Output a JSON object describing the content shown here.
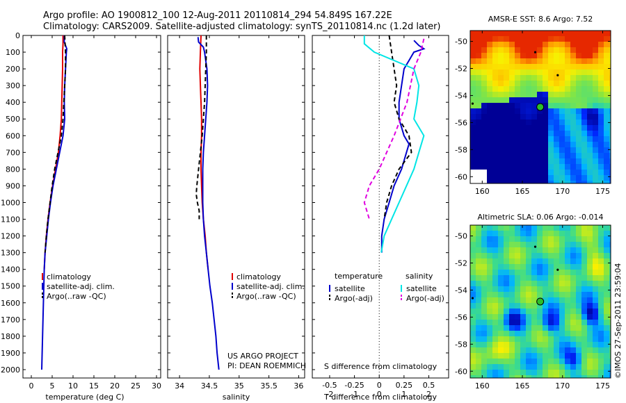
{
  "header": {
    "line1": "Argo profile: AO 1900812_100 12-Aug-2011 20110814_294 54.849S 167.22E",
    "line2": "Climatology: CARS2009. Satellite-adjusted climatology: synTS_20110814.nc (1.2d later)"
  },
  "colors": {
    "red": "#e00000",
    "blue": "#0000cc",
    "black": "#000000",
    "cyan": "#00e5e5",
    "magenta": "#e000e0"
  },
  "chart_data": [
    {
      "type": "line",
      "id": "temperature",
      "xlabel": "temperature (deg C)",
      "ylabel": "",
      "xlim": [
        -2,
        31
      ],
      "ylim": [
        2050,
        0
      ],
      "xticks": [
        0,
        5,
        10,
        15,
        20,
        25,
        30
      ],
      "yticks": [
        0,
        100,
        200,
        300,
        400,
        500,
        600,
        700,
        800,
        900,
        1000,
        1100,
        1200,
        1300,
        1400,
        1500,
        1600,
        1700,
        1800,
        1900,
        2000
      ],
      "legend": {
        "placement": "lower-left",
        "entries": [
          "climatology",
          "satellite-adj. clim.",
          "Argo(..raw -QC)"
        ]
      },
      "series": [
        {
          "name": "climatology",
          "color": "red",
          "dash": false,
          "points": [
            [
              7.6,
              0
            ],
            [
              7.6,
              50
            ],
            [
              7.5,
              100
            ],
            [
              7.5,
              200
            ],
            [
              7.4,
              300
            ],
            [
              7.3,
              400
            ],
            [
              7.2,
              500
            ],
            [
              6.9,
              600
            ],
            [
              6.5,
              700
            ],
            [
              5.8,
              800
            ],
            [
              5.1,
              900
            ],
            [
              4.5,
              1000
            ],
            [
              4.0,
              1100
            ],
            [
              3.6,
              1200
            ],
            [
              3.3,
              1300
            ],
            [
              3.1,
              1400
            ]
          ]
        },
        {
          "name": "satellite-adj. clim.",
          "color": "blue",
          "dash": false,
          "points": [
            [
              7.9,
              0
            ],
            [
              7.9,
              40
            ],
            [
              8.5,
              80
            ],
            [
              8.4,
              100
            ],
            [
              8.2,
              200
            ],
            [
              8.0,
              300
            ],
            [
              7.9,
              400
            ],
            [
              8.0,
              500
            ],
            [
              7.6,
              600
            ],
            [
              6.8,
              700
            ],
            [
              6.0,
              800
            ],
            [
              5.2,
              900
            ],
            [
              4.6,
              1000
            ],
            [
              4.1,
              1100
            ],
            [
              3.7,
              1200
            ],
            [
              3.3,
              1300
            ],
            [
              3.1,
              1400
            ],
            [
              3.0,
              1500
            ],
            [
              2.9,
              1600
            ],
            [
              2.8,
              1700
            ],
            [
              2.7,
              1800
            ],
            [
              2.6,
              1900
            ],
            [
              2.5,
              2000
            ]
          ]
        },
        {
          "name": "Argo(..raw -QC)",
          "color": "black",
          "dash": true,
          "points": [
            [
              8.0,
              0
            ],
            [
              8.1,
              50
            ],
            [
              8.2,
              100
            ],
            [
              8.2,
              200
            ],
            [
              8.0,
              300
            ],
            [
              7.8,
              400
            ],
            [
              7.6,
              500
            ],
            [
              7.2,
              600
            ],
            [
              6.4,
              700
            ],
            [
              5.6,
              800
            ],
            [
              5.0,
              900
            ],
            [
              4.5,
              1000
            ],
            [
              4.0,
              1100
            ],
            [
              3.6,
              1200
            ],
            [
              3.3,
              1300
            ]
          ]
        }
      ]
    },
    {
      "type": "line",
      "id": "salinity",
      "xlabel": "salinity",
      "ylabel": "",
      "xlim": [
        33.8,
        36.1
      ],
      "ylim": [
        2050,
        0
      ],
      "xticks": [
        34,
        34.5,
        35,
        35.5,
        36
      ],
      "legend": {
        "placement": "lower-left",
        "entries": [
          "climatology",
          "satellite-adj. clim.",
          "Argo(..raw -QC)"
        ]
      },
      "annotations": [
        "US ARGO PROJECT",
        "PI: DEAN ROEMMICH"
      ],
      "series": [
        {
          "name": "climatology",
          "color": "red",
          "dash": false,
          "points": [
            [
              34.36,
              0
            ],
            [
              34.35,
              100
            ],
            [
              34.34,
              200
            ],
            [
              34.35,
              300
            ],
            [
              34.36,
              400
            ],
            [
              34.37,
              500
            ],
            [
              34.37,
              600
            ],
            [
              34.36,
              700
            ],
            [
              34.36,
              800
            ],
            [
              34.37,
              900
            ],
            [
              34.38,
              1000
            ],
            [
              34.4,
              1100
            ],
            [
              34.43,
              1200
            ],
            [
              34.45,
              1300
            ],
            [
              34.48,
              1400
            ]
          ]
        },
        {
          "name": "satellite-adj. clim.",
          "color": "blue",
          "dash": false,
          "points": [
            [
              34.31,
              10
            ],
            [
              34.32,
              40
            ],
            [
              34.4,
              70
            ],
            [
              34.42,
              100
            ],
            [
              34.46,
              200
            ],
            [
              34.47,
              300
            ],
            [
              34.46,
              400
            ],
            [
              34.44,
              500
            ],
            [
              34.42,
              600
            ],
            [
              34.4,
              700
            ],
            [
              34.39,
              800
            ],
            [
              34.39,
              900
            ],
            [
              34.39,
              1000
            ],
            [
              34.4,
              1100
            ],
            [
              34.42,
              1200
            ],
            [
              34.45,
              1300
            ],
            [
              34.48,
              1400
            ],
            [
              34.51,
              1500
            ],
            [
              34.55,
              1600
            ],
            [
              34.58,
              1700
            ],
            [
              34.61,
              1800
            ],
            [
              34.63,
              1900
            ],
            [
              34.66,
              2000
            ]
          ]
        },
        {
          "name": "Argo(..raw -QC)",
          "color": "black",
          "dash": true,
          "points": [
            [
              34.45,
              0
            ],
            [
              34.45,
              100
            ],
            [
              34.44,
              200
            ],
            [
              34.43,
              300
            ],
            [
              34.42,
              400
            ],
            [
              34.4,
              500
            ],
            [
              34.38,
              600
            ],
            [
              34.35,
              700
            ],
            [
              34.32,
              800
            ],
            [
              34.29,
              900
            ],
            [
              34.28,
              950
            ],
            [
              34.3,
              1000
            ],
            [
              34.33,
              1050
            ],
            [
              34.33,
              1100
            ]
          ]
        }
      ]
    },
    {
      "type": "line",
      "id": "difference",
      "xlabel": "T difference from climatology",
      "xlabel_top": "S difference from climatology",
      "xlim": [
        -2.7,
        2.8
      ],
      "ylim": [
        2050,
        0
      ],
      "xticks": [
        -2,
        -1,
        0,
        1,
        2
      ],
      "xticks_top": [
        -0.5,
        -0.25,
        0,
        0.25,
        0.5
      ],
      "legend": {
        "placement": "lower-center",
        "header_left": "temperature",
        "header_right": "salinity",
        "entries": [
          "satellite",
          "Argo(-adj)",
          "satellite",
          "Argo(-adj)"
        ]
      },
      "series": [
        {
          "name": "temperature satellite",
          "color": "blue",
          "dash": false,
          "points": [
            [
              1.4,
              30
            ],
            [
              1.6,
              60
            ],
            [
              1.8,
              80
            ],
            [
              1.4,
              100
            ],
            [
              1.2,
              150
            ],
            [
              1.0,
              200
            ],
            [
              0.9,
              300
            ],
            [
              0.8,
              400
            ],
            [
              0.8,
              500
            ],
            [
              1.0,
              600
            ],
            [
              1.2,
              650
            ],
            [
              1.1,
              700
            ],
            [
              0.9,
              800
            ],
            [
              0.6,
              900
            ],
            [
              0.4,
              1000
            ],
            [
              0.2,
              1100
            ],
            [
              0.1,
              1200
            ],
            [
              0.1,
              1300
            ]
          ]
        },
        {
          "name": "temperature Argo(-adj)",
          "color": "black",
          "dash": true,
          "points": [
            [
              0.4,
              0
            ],
            [
              0.5,
              100
            ],
            [
              0.6,
              200
            ],
            [
              0.7,
              300
            ],
            [
              0.6,
              400
            ],
            [
              0.8,
              500
            ],
            [
              1.2,
              600
            ],
            [
              1.3,
              700
            ],
            [
              0.8,
              800
            ],
            [
              0.5,
              900
            ],
            [
              0.3,
              1000
            ],
            [
              0.2,
              1100
            ]
          ]
        },
        {
          "name": "salinity satellite",
          "color": "cyan",
          "dash": false,
          "points": [
            [
              -0.15,
              0
            ],
            [
              -0.15,
              50
            ],
            [
              -0.05,
              100
            ],
            [
              0.35,
              200
            ],
            [
              0.4,
              300
            ],
            [
              0.38,
              400
            ],
            [
              0.35,
              500
            ],
            [
              0.45,
              600
            ],
            [
              0.4,
              700
            ],
            [
              0.35,
              800
            ],
            [
              0.2,
              1000
            ],
            [
              0.05,
              1200
            ],
            [
              0.02,
              1300
            ]
          ]
        },
        {
          "name": "salinity Argo(-adj)",
          "color": "magenta",
          "dash": true,
          "points": [
            [
              0.45,
              20
            ],
            [
              0.42,
              100
            ],
            [
              0.35,
              200
            ],
            [
              0.28,
              400
            ],
            [
              0.15,
              600
            ],
            [
              0.0,
              800
            ],
            [
              -0.1,
              900
            ],
            [
              -0.15,
              1000
            ],
            [
              -0.1,
              1100
            ]
          ]
        }
      ]
    },
    {
      "type": "heatmap",
      "id": "sst-map",
      "title": "AMSR-E SST: 8.6 Argo: 7.52",
      "xlim": [
        158.5,
        176
      ],
      "ylim": [
        -60.5,
        -49.2
      ],
      "xticks": [
        160,
        165,
        170,
        175
      ],
      "yticks": [
        -50,
        -52,
        -54,
        -56,
        -58,
        -60
      ],
      "float_position": [
        167.22,
        -54.849
      ]
    },
    {
      "type": "heatmap",
      "id": "sla-map",
      "title": "Altimetric SLA: 0.06 Argo: -0.014",
      "xlim": [
        158.5,
        176
      ],
      "ylim": [
        -60.5,
        -49.2
      ],
      "xticks": [
        160,
        165,
        170,
        175
      ],
      "yticks": [
        -50,
        -52,
        -54,
        -56,
        -58,
        -60
      ],
      "float_position": [
        167.22,
        -54.849
      ]
    }
  ],
  "footer": {
    "watermark": "©IMOS 27-Sep-2011 23:59:04"
  }
}
